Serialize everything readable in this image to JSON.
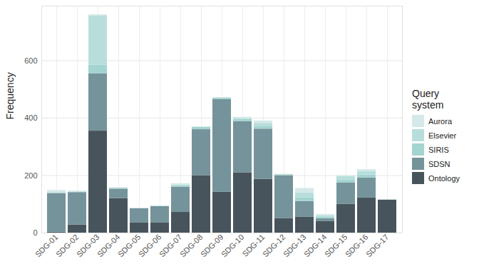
{
  "chart_data": {
    "type": "bar",
    "stacked": true,
    "y_label": "Frequency",
    "legend_title": "Query system",
    "legend": "right",
    "grid": true,
    "categories": [
      "SDG-01",
      "SDG-02",
      "SDG-03",
      "SDG-04",
      "SDG-05",
      "SDG-06",
      "SDG-07",
      "SDG-08",
      "SDG-09",
      "SDG-10",
      "SDG-11",
      "SDG-12",
      "SDG-13",
      "SDG-14",
      "SDG-15",
      "SDG-16",
      "SDG-17"
    ],
    "series": [
      {
        "name": "Aurora",
        "color": "#d4e9e8",
        "values": [
          7,
          3,
          5,
          2,
          2,
          3,
          4,
          2,
          2,
          4,
          8,
          2,
          15,
          5,
          3,
          7,
          2
        ]
      },
      {
        "name": "Elsevier",
        "color": "#b8dedc",
        "values": [
          3,
          0,
          170,
          0,
          0,
          0,
          3,
          0,
          0,
          3,
          10,
          0,
          18,
          5,
          12,
          12,
          0
        ]
      },
      {
        "name": "SIRIS",
        "color": "#a3d4d0",
        "values": [
          0,
          2,
          30,
          3,
          0,
          0,
          5,
          8,
          5,
          8,
          10,
          3,
          12,
          5,
          10,
          10,
          0
        ]
      },
      {
        "name": "SDSN",
        "color": "#75939a",
        "values": [
          135,
          113,
          200,
          33,
          50,
          57,
          88,
          160,
          323,
          178,
          175,
          150,
          55,
          10,
          75,
          70,
          0
        ]
      },
      {
        "name": "Ontology",
        "color": "#48545c",
        "values": [
          3,
          28,
          355,
          120,
          35,
          35,
          72,
          200,
          142,
          210,
          187,
          50,
          55,
          40,
          100,
          122,
          115
        ]
      }
    ],
    "ylim": [
      0,
      790
    ],
    "yticks": [
      0,
      200,
      400,
      600
    ]
  }
}
